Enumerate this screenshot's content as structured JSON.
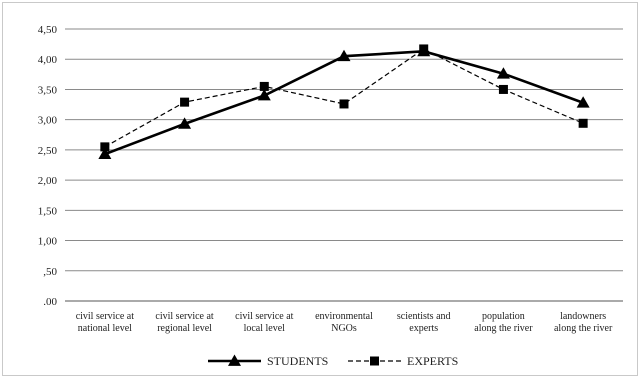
{
  "chart_data": {
    "type": "line",
    "categories": [
      [
        "civil service at",
        "national level"
      ],
      [
        "civil service at",
        "regional level"
      ],
      [
        "civil service at",
        "local level"
      ],
      [
        "environmental",
        "NGOs"
      ],
      [
        "scientists and",
        "experts"
      ],
      [
        "population",
        "along the river"
      ],
      [
        "landowners",
        "along the river"
      ]
    ],
    "series": [
      {
        "name": "STUDENTS",
        "values": [
          2.43,
          2.93,
          3.4,
          4.05,
          4.13,
          3.76,
          3.28
        ],
        "line_style": "solid",
        "marker": "triangle",
        "color": "#000000"
      },
      {
        "name": "EXPERTS",
        "values": [
          2.55,
          3.29,
          3.55,
          3.26,
          4.17,
          3.5,
          2.94
        ],
        "line_style": "dashed",
        "marker": "square",
        "color": "#000000"
      }
    ],
    "y_ticks": [
      ".00",
      ",50",
      "1,00",
      "1,50",
      "2,00",
      "2,50",
      "3,00",
      "3,50",
      "4,00",
      "4,50"
    ],
    "ylim": [
      0,
      4.5
    ],
    "grid": true,
    "legend_position": "bottom"
  }
}
